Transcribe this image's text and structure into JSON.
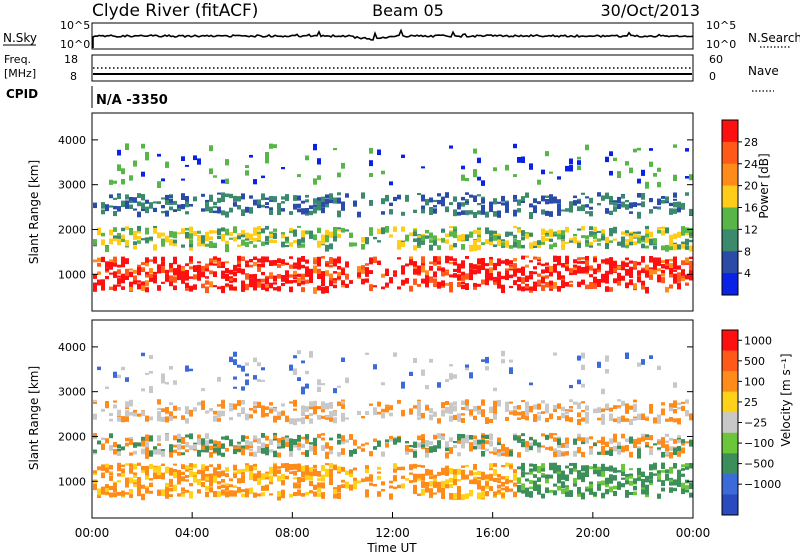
{
  "header": {
    "station": "Clyde River (fitACF)",
    "beam": "Beam 05",
    "date": "30/Oct/2013"
  },
  "summary_panels": {
    "nsky_label": "N.Sky",
    "nsky_ticks": [
      "10^5",
      "10^0"
    ],
    "nsearch_label": "N.Search",
    "freq_label": "Freq.",
    "freq_unit": "[MHz]",
    "freq_ticks": [
      "18",
      "8"
    ],
    "nave_ticks": [
      "60",
      "0"
    ],
    "nave_label": "Nave",
    "cpid_label": "CPID",
    "cpid_value": "N/A -3350"
  },
  "chart_data": [
    {
      "type": "heatmap",
      "name": "power",
      "xlabel": "Time UT",
      "ylabel": "Slant Range [km]",
      "x_range": [
        "00:00",
        "24:00"
      ],
      "ylim": [
        180,
        4600
      ],
      "y_ticks": [
        1000,
        2000,
        3000,
        4000
      ],
      "colorbar": {
        "label": "Power [dB]",
        "range": [
          0,
          32
        ],
        "tick_labels": [
          "4",
          "8",
          "12",
          "16",
          "20",
          "24",
          "28"
        ],
        "colors": [
          "#0a22e6",
          "#2a4ba8",
          "#3b8a6e",
          "#58b548",
          "#ffcc1a",
          "#ff8c1a",
          "#ff5a1a",
          "#ff1010"
        ]
      }
    },
    {
      "type": "heatmap",
      "name": "velocity",
      "xlabel": "Time UT",
      "ylabel": "Slant Range [km]",
      "x_range": [
        "00:00",
        "24:00"
      ],
      "ylim": [
        180,
        4600
      ],
      "y_ticks": [
        1000,
        2000,
        3000,
        4000
      ],
      "colorbar": {
        "label": "Velocity [m s⁻¹]",
        "tick_labels": [
          "1000",
          "500",
          "100",
          "25",
          "−25",
          "−100",
          "−500",
          "−1000"
        ],
        "colors": [
          "#2a4ac0",
          "#3c6ad8",
          "#3c8e5a",
          "#6cc63a",
          "#c8c8c8",
          "#ffd21a",
          "#ff8c1a",
          "#ff5a1a",
          "#ff1010"
        ]
      }
    }
  ],
  "x_axis": {
    "label": "Time UT",
    "tick_labels": [
      "00:00",
      "04:00",
      "08:00",
      "12:00",
      "16:00",
      "20:00",
      "00:00"
    ]
  }
}
